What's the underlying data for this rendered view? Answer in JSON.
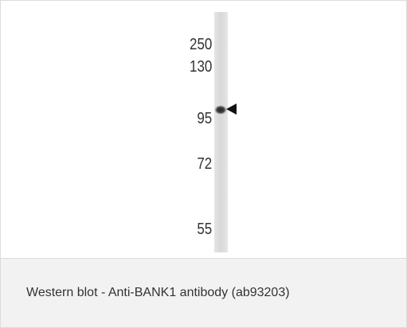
{
  "figure": {
    "markers": [
      "250",
      "130",
      "95",
      "72",
      "55"
    ]
  },
  "caption": "Western blot - Anti-BANK1 antibody (ab93203)"
}
